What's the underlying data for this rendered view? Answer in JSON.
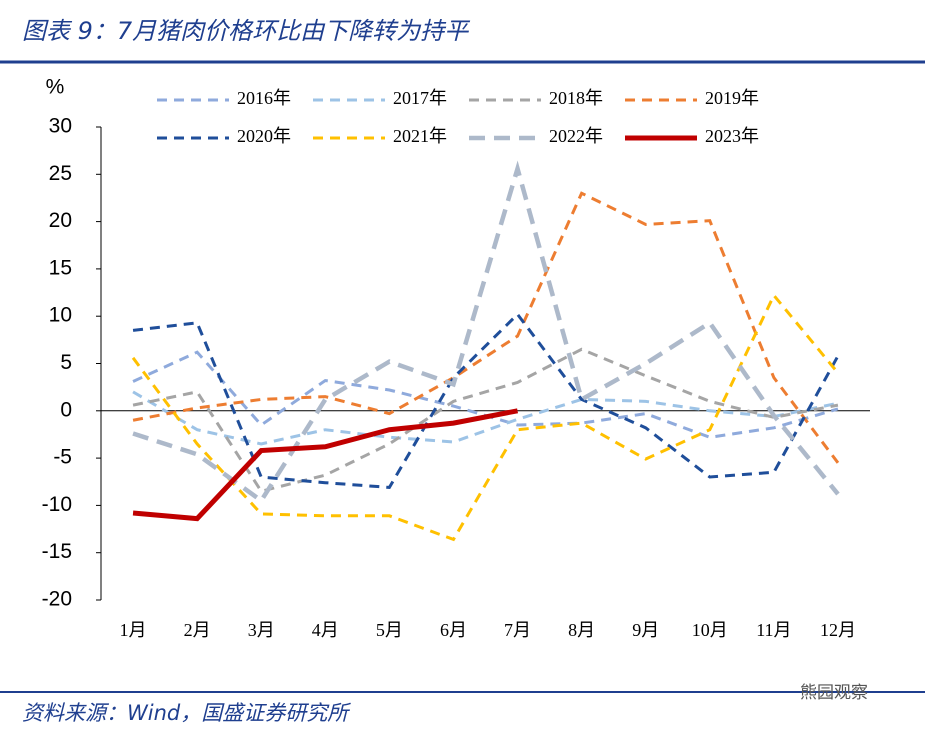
{
  "chart_data": {
    "type": "line",
    "title": "图表 9：7月猪肉价格环比由下降转为持平",
    "y_label": "%",
    "source": "资料来源：Wind，国盛证券研究所",
    "watermark": "熊园观察",
    "categories": [
      "1月",
      "2月",
      "3月",
      "4月",
      "5月",
      "6月",
      "7月",
      "8月",
      "9月",
      "10月",
      "11月",
      "12月"
    ],
    "ylim": [
      -20,
      30
    ],
    "yticks": [
      -20,
      -15,
      -10,
      -5,
      0,
      5,
      10,
      15,
      20,
      25,
      30
    ],
    "series": [
      {
        "name": "2016年",
        "color": "#8faadc",
        "line_style": "dashed",
        "values": [
          3.1,
          6.2,
          -1.5,
          3.2,
          2.2,
          0.5,
          -1.5,
          -1.3,
          -0.3,
          -2.8,
          -1.8,
          0.2
        ]
      },
      {
        "name": "2017年",
        "color": "#9dc3e6",
        "line_style": "dashed",
        "values": [
          2,
          -2,
          -3.5,
          -2,
          -2.8,
          -3.3,
          -0.9,
          1.2,
          1,
          0,
          -0.6,
          0.8
        ]
      },
      {
        "name": "2018年",
        "color": "#a5a5a5",
        "line_style": "dashed",
        "values": [
          0.6,
          2,
          -8.5,
          -6.8,
          -3.5,
          1,
          3,
          6.5,
          3.7,
          1,
          -0.7,
          0.6
        ]
      },
      {
        "name": "2019年",
        "color": "#ed7d31",
        "line_style": "dashed",
        "values": [
          -1,
          0.3,
          1.2,
          1.5,
          -0.3,
          3.5,
          7.9,
          23,
          19.7,
          20.1,
          3.5,
          -5.5
        ]
      },
      {
        "name": "2020年",
        "color": "#1f4e9a",
        "line_style": "dashed",
        "values": [
          8.5,
          9.3,
          -7,
          -7.6,
          -8.1,
          3.5,
          10.2,
          1.2,
          -1.8,
          -7,
          -6.5,
          5.8
        ]
      },
      {
        "name": "2021年",
        "color": "#ffc000",
        "line_style": "dashed",
        "values": [
          5.6,
          -3.5,
          -10.9,
          -11.1,
          -11.1,
          -13.6,
          -2,
          -1.3,
          -5.1,
          -2,
          12.2,
          4
        ]
      },
      {
        "name": "2022年",
        "color": "#adb9ca",
        "line_style": "longdash",
        "values": [
          -2.4,
          -4.6,
          -9.5,
          1.2,
          5.2,
          2.8,
          25.6,
          1.2,
          5,
          9.3,
          -0.5,
          -8.8
        ]
      },
      {
        "name": "2023年",
        "color": "#c00000",
        "line_style": "solid",
        "values": [
          -10.8,
          -11.4,
          -4.2,
          -3.8,
          -2,
          -1.3,
          0,
          null,
          null,
          null,
          null,
          null
        ]
      }
    ]
  }
}
